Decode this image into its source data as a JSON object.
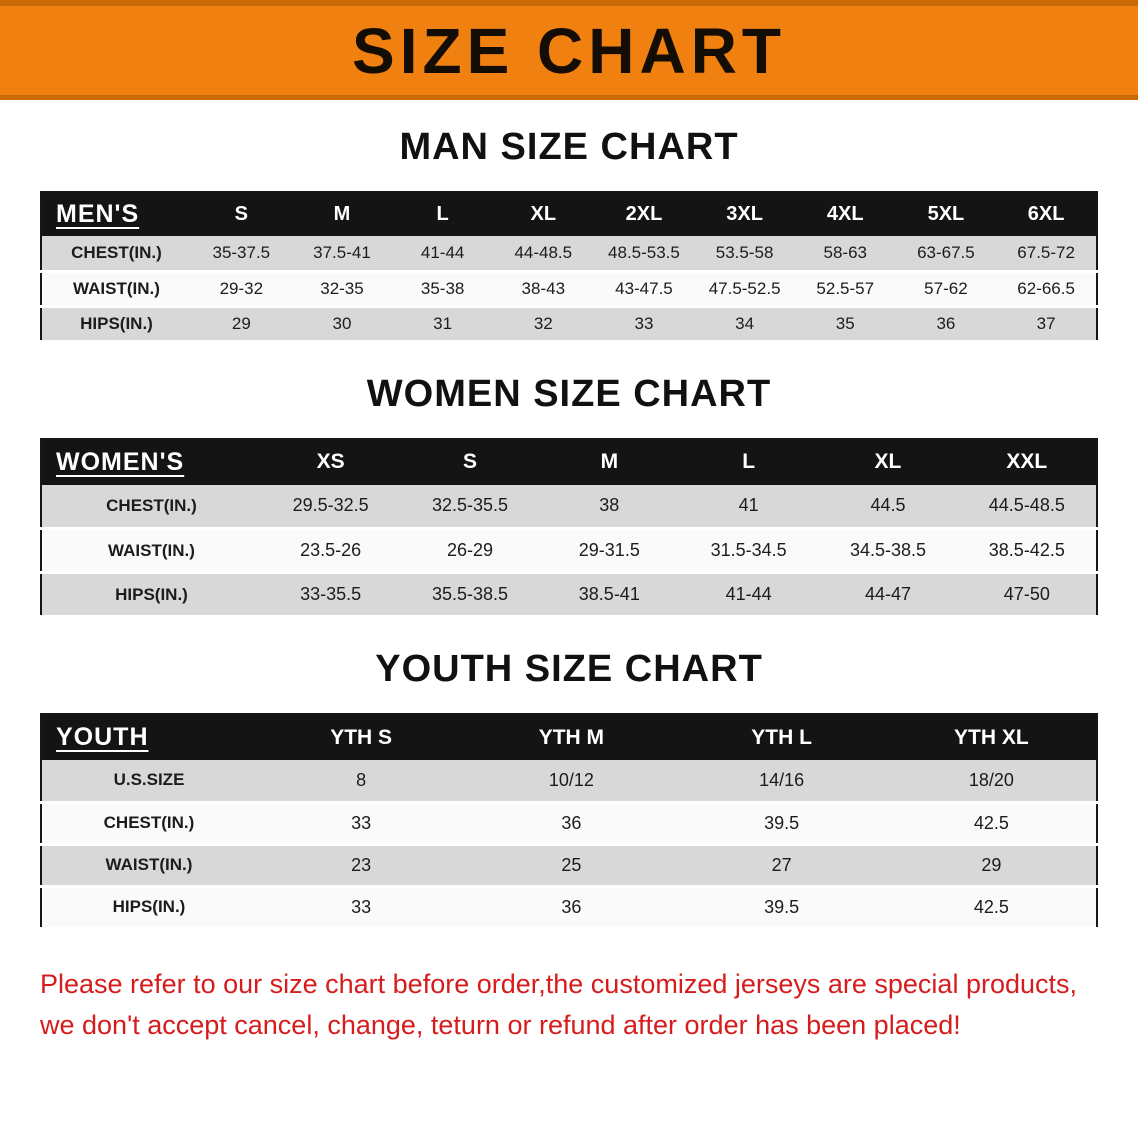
{
  "banner": {
    "title": "SIZE CHART"
  },
  "colors": {
    "banner_bg": "#f0800f",
    "banner_edge": "#c96a06",
    "header_bg": "#141414",
    "stripe": "#d8d8d8",
    "notice_red": "#d61c1c"
  },
  "sections": [
    {
      "id": "men",
      "heading": "MAN SIZE CHART",
      "table": {
        "header": [
          "MEN'S",
          "S",
          "M",
          "L",
          "XL",
          "2XL",
          "3XL",
          "4XL",
          "5XL",
          "6XL"
        ],
        "rows": [
          [
            "CHEST(IN.)",
            "35-37.5",
            "37.5-41",
            "41-44",
            "44-48.5",
            "48.5-53.5",
            "53.5-58",
            "58-63",
            "63-67.5",
            "67.5-72"
          ],
          [
            "WAIST(IN.)",
            "29-32",
            "32-35",
            "35-38",
            "38-43",
            "43-47.5",
            "47.5-52.5",
            "52.5-57",
            "57-62",
            "62-66.5"
          ],
          [
            "HIPS(IN.)",
            "29",
            "30",
            "31",
            "32",
            "33",
            "34",
            "35",
            "36",
            "37"
          ]
        ]
      }
    },
    {
      "id": "women",
      "heading": "WOMEN SIZE CHART",
      "table": {
        "header": [
          "WOMEN'S",
          "XS",
          "S",
          "M",
          "L",
          "XL",
          "XXL"
        ],
        "rows": [
          [
            "CHEST(IN.)",
            "29.5-32.5",
            "32.5-35.5",
            "38",
            "41",
            "44.5",
            "44.5-48.5"
          ],
          [
            "WAIST(IN.)",
            "23.5-26",
            "26-29",
            "29-31.5",
            "31.5-34.5",
            "34.5-38.5",
            "38.5-42.5"
          ],
          [
            "HIPS(IN.)",
            "33-35.5",
            "35.5-38.5",
            "38.5-41",
            "41-44",
            "44-47",
            "47-50"
          ]
        ]
      }
    },
    {
      "id": "youth",
      "heading": "YOUTH SIZE CHART",
      "table": {
        "header": [
          "YOUTH",
          "YTH S",
          "YTH M",
          "YTH L",
          "YTH XL"
        ],
        "rows": [
          [
            "U.S.SIZE",
            "8",
            "10/12",
            "14/16",
            "18/20"
          ],
          [
            "CHEST(IN.)",
            "33",
            "36",
            "39.5",
            "42.5"
          ],
          [
            "WAIST(IN.)",
            "23",
            "25",
            "27",
            "29"
          ],
          [
            "HIPS(IN.)",
            "33",
            "36",
            "39.5",
            "42.5"
          ]
        ]
      }
    }
  ],
  "notice": {
    "line1": "Please refer to our size chart before order,the customized jerseys are special products,",
    "line2": "we don't accept cancel, change, teturn or refund after order has been placed!"
  }
}
